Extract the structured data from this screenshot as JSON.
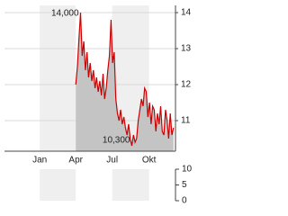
{
  "chart_data": [
    {
      "type": "line",
      "x": [
        91,
        95,
        99,
        103,
        107,
        111,
        115,
        119,
        123,
        127,
        131,
        135,
        139,
        143,
        147,
        151,
        155,
        159,
        163,
        167,
        171,
        175,
        179,
        183,
        187,
        191,
        195,
        199,
        203,
        207,
        211,
        215,
        219,
        223,
        227,
        231,
        235,
        239,
        243,
        247,
        251,
        255,
        259,
        263,
        267,
        271,
        275,
        279,
        283,
        287,
        291,
        295,
        299,
        303,
        307,
        311,
        315,
        319,
        323,
        327,
        331,
        335
      ],
      "series": [
        {
          "color": "#cc0000",
          "fill": "#c4c4c4",
          "values": [
            12.0,
            12.5,
            13.3,
            14.0,
            12.8,
            13.2,
            12.4,
            12.9,
            12.2,
            12.6,
            12.1,
            12.4,
            11.9,
            12.2,
            11.8,
            12.1,
            11.7,
            12.3,
            11.6,
            11.9,
            12.4,
            12.8,
            13.8,
            12.6,
            12.9,
            11.6,
            11.2,
            11.0,
            11.3,
            10.9,
            11.1,
            10.8,
            10.6,
            10.9,
            10.5,
            10.3,
            10.6,
            10.4,
            10.5,
            11.0,
            11.3,
            11.6,
            11.4,
            11.9,
            11.8,
            11.1,
            11.5,
            10.9,
            11.4,
            11.3,
            10.7,
            11.2,
            10.9,
            11.4,
            10.7,
            10.6,
            11.3,
            11.0,
            10.5,
            11.2,
            10.6,
            10.8
          ]
        }
      ],
      "xlim": [
        -87,
        340
      ],
      "xticks": [
        {
          "value": 1,
          "label": "Jan"
        },
        {
          "value": 91,
          "label": "Apr"
        },
        {
          "value": 182,
          "label": "Jul"
        },
        {
          "value": 274,
          "label": "Okt"
        }
      ],
      "ylim": [
        10.15,
        14.2
      ],
      "yticks": [
        11,
        12,
        13,
        14
      ],
      "grid": true,
      "annotations": [
        {
          "x": 103,
          "value": 14.0,
          "label": "14,000"
        },
        {
          "x": 231,
          "value": 10.3,
          "label": "10,300"
        }
      ]
    },
    {
      "type": "bar",
      "ylim": [
        0,
        10
      ],
      "yticks": [
        0,
        5,
        10
      ]
    }
  ]
}
